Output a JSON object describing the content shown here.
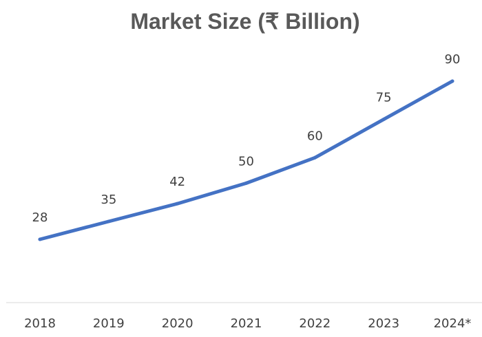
{
  "chart_data": {
    "type": "line",
    "title": "Market Size (₹ Billion)",
    "categories": [
      "2018",
      "2019",
      "2020",
      "2021",
      "2022",
      "2023",
      "2024*"
    ],
    "series": [
      {
        "values": [
          28,
          35,
          42,
          50,
          60,
          75,
          90
        ]
      }
    ],
    "data_labels": [
      "28",
      "35",
      "42",
      "50",
      "60",
      "75",
      "90"
    ],
    "xlabel": "",
    "ylabel": "",
    "grid": false,
    "y_axis_visible": false,
    "legend": "none",
    "colors": {
      "line": "#4472C4",
      "title": "#595959",
      "labels": "#404040",
      "axis": "#D9D9D9"
    }
  }
}
